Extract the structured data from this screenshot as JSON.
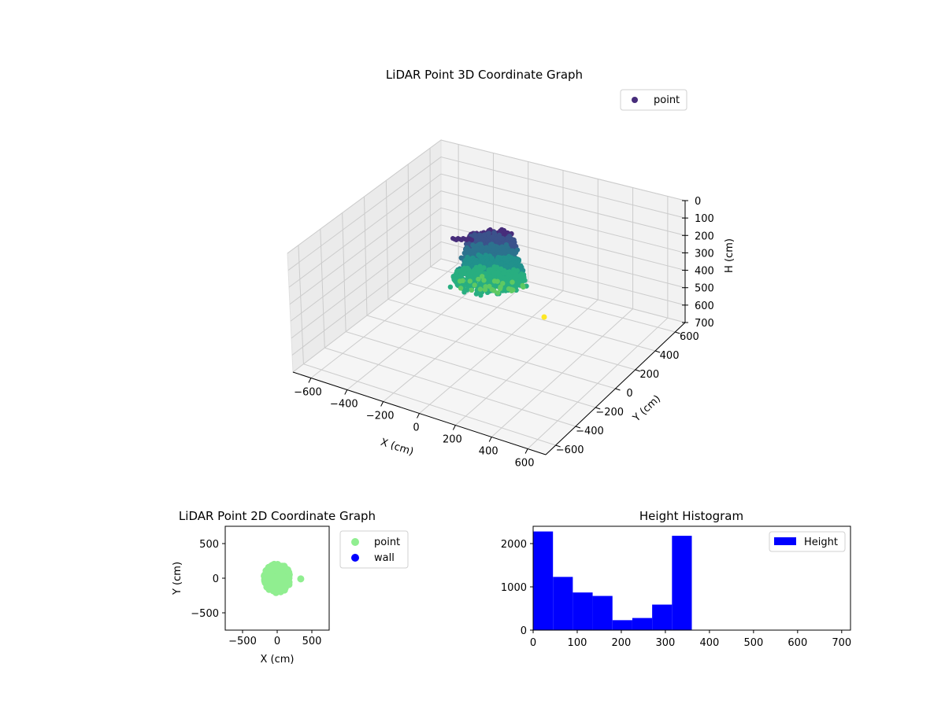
{
  "chart_data": [
    {
      "type": "scatter3d",
      "title": "LiDAR Point 3D Coordinate Graph",
      "xlabel": "X (cm)",
      "ylabel": "Y (cm)",
      "zlabel": "H (cm)",
      "xlim": [
        -700,
        700
      ],
      "ylim": [
        -700,
        700
      ],
      "zlim": [
        700,
        0
      ],
      "xticks": [
        "−600",
        "−400",
        "−200",
        "0",
        "200",
        "400",
        "600"
      ],
      "yticks": [
        "600",
        "400",
        "200",
        "0",
        "−200",
        "−400",
        "−600"
      ],
      "zticks": [
        "0",
        "100",
        "200",
        "300",
        "400",
        "500",
        "600",
        "700"
      ],
      "colormap": "viridis",
      "grid": true,
      "legend": {
        "placement": "top-right",
        "entries": [
          {
            "label": "point",
            "color": "#472d7b"
          }
        ]
      }
    },
    {
      "type": "scatter",
      "title": "LiDAR Point 2D Coordinate Graph",
      "xlabel": "X (cm)",
      "ylabel": "Y (cm)",
      "xlim": [
        -750,
        750
      ],
      "ylim": [
        -750,
        750
      ],
      "xticks": [
        "−500",
        "0",
        "500"
      ],
      "yticks": [
        "500",
        "0",
        "−500"
      ],
      "legend": {
        "placement": "outside-right",
        "entries": [
          {
            "label": "point",
            "color": "#90ee90"
          },
          {
            "label": "wall",
            "color": "#0000ff"
          }
        ]
      },
      "series": [
        {
          "name": "point",
          "color": "#90ee90",
          "cluster": {
            "cx": 0,
            "cy": 0,
            "radius": 210
          },
          "points": [
            [
              340,
              -10
            ]
          ]
        },
        {
          "name": "wall",
          "color": "#0000ff",
          "points": []
        }
      ]
    },
    {
      "type": "bar",
      "title": "Height Histogram",
      "xlim": [
        0,
        720
      ],
      "ylim": [
        0,
        2400
      ],
      "xticks": [
        "0",
        "100",
        "200",
        "300",
        "400",
        "500",
        "600",
        "700"
      ],
      "yticks": [
        "0",
        "1000",
        "2000"
      ],
      "bin_width": 45,
      "legend": {
        "placement": "top-right",
        "entries": [
          {
            "label": "Height",
            "color": "#0000ff"
          }
        ]
      },
      "series": [
        {
          "name": "Height",
          "color": "#0000ff",
          "bins": [
            0,
            45,
            90,
            135,
            180,
            225,
            270,
            315
          ],
          "values": [
            2280,
            1230,
            870,
            790,
            230,
            280,
            590,
            2180
          ]
        }
      ]
    }
  ]
}
